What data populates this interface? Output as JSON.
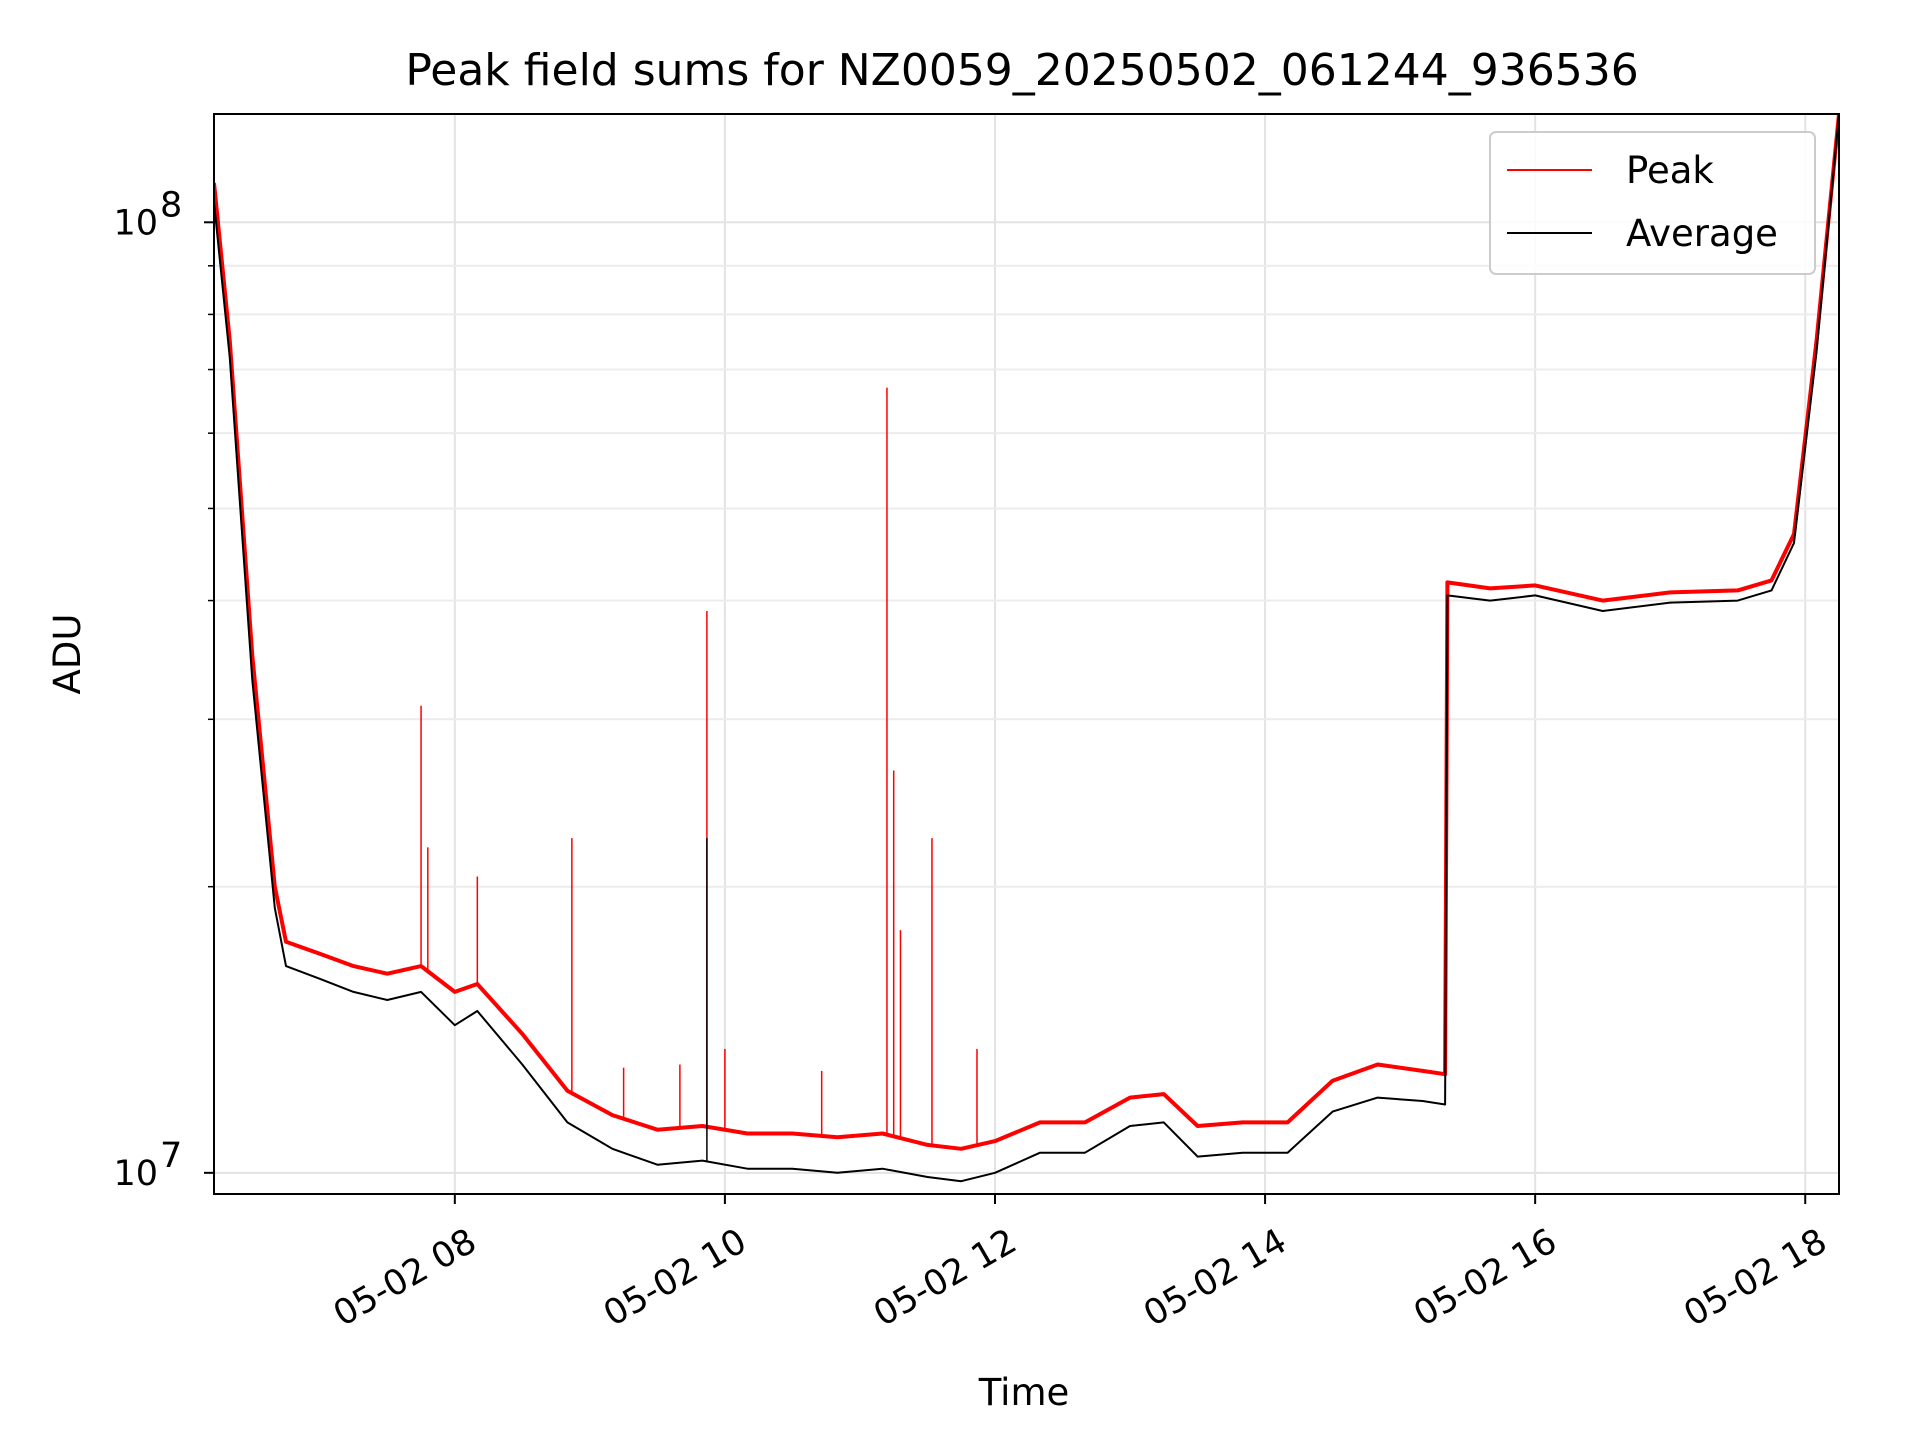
{
  "chart_data": {
    "type": "line",
    "title": "Peak field sums for NZ0059_20250502_061244_936536",
    "xlabel": "Time",
    "ylabel": "ADU",
    "yscale": "log",
    "grid": true,
    "legend_position": "top-right",
    "xlim": [
      "05-02 06:13",
      "05-02 18:15"
    ],
    "ylim": [
      9500000,
      130000000
    ],
    "x_ticks": [
      {
        "value": "05-02 08:00",
        "label": "05-02 08"
      },
      {
        "value": "05-02 10:00",
        "label": "05-02 10"
      },
      {
        "value": "05-02 12:00",
        "label": "05-02 12"
      },
      {
        "value": "05-02 14:00",
        "label": "05-02 14"
      },
      {
        "value": "05-02 16:00",
        "label": "05-02 16"
      },
      {
        "value": "05-02 18:00",
        "label": "05-02 18"
      }
    ],
    "y_ticks": [
      {
        "value": 10000000,
        "base": "10",
        "exp": "7"
      },
      {
        "value": 100000000,
        "base": "10",
        "exp": "8"
      }
    ],
    "series": [
      {
        "name": "Peak",
        "color": "#ff0000",
        "x": [
          "05-02 06:13",
          "05-02 06:20",
          "05-02 06:30",
          "05-02 06:40",
          "05-02 06:45",
          "05-02 07:00",
          "05-02 07:15",
          "05-02 07:30",
          "05-02 07:45",
          "05-02 08:00",
          "05-02 08:10",
          "05-02 08:30",
          "05-02 08:50",
          "05-02 09:10",
          "05-02 09:30",
          "05-02 09:50",
          "05-02 10:10",
          "05-02 10:30",
          "05-02 10:50",
          "05-02 11:10",
          "05-02 11:30",
          "05-02 11:45",
          "05-02 12:00",
          "05-02 12:20",
          "05-02 12:40",
          "05-02 13:00",
          "05-02 13:15",
          "05-02 13:30",
          "05-02 13:50",
          "05-02 14:10",
          "05-02 14:30",
          "05-02 14:50",
          "05-02 15:10",
          "05-02 15:20",
          "05-02 15:21",
          "05-02 15:40",
          "05-02 16:00",
          "05-02 16:30",
          "05-02 17:00",
          "05-02 17:30",
          "05-02 17:45",
          "05-02 17:55",
          "05-02 18:05",
          "05-02 18:15"
        ],
        "values": [
          110000000,
          75000000,
          35000000,
          20000000,
          17500000,
          17000000,
          16500000,
          16200000,
          16500000,
          15500000,
          15800000,
          14000000,
          12200000,
          11500000,
          11100000,
          11200000,
          11000000,
          11000000,
          10900000,
          11000000,
          10700000,
          10600000,
          10800000,
          11300000,
          11300000,
          12000000,
          12100000,
          11200000,
          11300000,
          11300000,
          12500000,
          13000000,
          12800000,
          12700000,
          41800000,
          41200000,
          41500000,
          40000000,
          40800000,
          41000000,
          42000000,
          47000000,
          75000000,
          130000000
        ]
      },
      {
        "name": "Average",
        "color": "#000000",
        "x": [
          "05-02 06:13",
          "05-02 06:20",
          "05-02 06:30",
          "05-02 06:40",
          "05-02 06:45",
          "05-02 07:00",
          "05-02 07:15",
          "05-02 07:30",
          "05-02 07:45",
          "05-02 08:00",
          "05-02 08:10",
          "05-02 08:30",
          "05-02 08:50",
          "05-02 09:10",
          "05-02 09:30",
          "05-02 09:50",
          "05-02 10:10",
          "05-02 10:30",
          "05-02 10:50",
          "05-02 11:10",
          "05-02 11:30",
          "05-02 11:45",
          "05-02 12:00",
          "05-02 12:20",
          "05-02 12:40",
          "05-02 13:00",
          "05-02 13:15",
          "05-02 13:30",
          "05-02 13:50",
          "05-02 14:10",
          "05-02 14:30",
          "05-02 14:50",
          "05-02 15:10",
          "05-02 15:20",
          "05-02 15:21",
          "05-02 15:40",
          "05-02 16:00",
          "05-02 16:30",
          "05-02 17:00",
          "05-02 17:30",
          "05-02 17:45",
          "05-02 17:55",
          "05-02 18:05",
          "05-02 18:15"
        ],
        "values": [
          105000000,
          72000000,
          33000000,
          19000000,
          16500000,
          16000000,
          15500000,
          15200000,
          15500000,
          14300000,
          14800000,
          13000000,
          11300000,
          10600000,
          10200000,
          10300000,
          10100000,
          10100000,
          10000000,
          10100000,
          9900000,
          9800000,
          10000000,
          10500000,
          10500000,
          11200000,
          11300000,
          10400000,
          10500000,
          10500000,
          11600000,
          12000000,
          11900000,
          11800000,
          40500000,
          40000000,
          40500000,
          39000000,
          39800000,
          40000000,
          41000000,
          46000000,
          73000000,
          130000000
        ]
      }
    ],
    "spikes": [
      {
        "x": "05-02 07:45",
        "value": 31000000,
        "series": "Peak"
      },
      {
        "x": "05-02 07:48",
        "value": 22000000,
        "series": "Peak"
      },
      {
        "x": "05-02 08:10",
        "value": 20500000,
        "series": "Peak"
      },
      {
        "x": "05-02 08:52",
        "value": 22500000,
        "series": "Peak"
      },
      {
        "x": "05-02 09:15",
        "value": 12900000,
        "series": "Peak"
      },
      {
        "x": "05-02 09:40",
        "value": 13000000,
        "series": "Peak"
      },
      {
        "x": "05-02 09:52",
        "value": 39000000,
        "series": "Peak"
      },
      {
        "x": "05-02 09:52",
        "value": 22500000,
        "series": "Average"
      },
      {
        "x": "05-02 10:00",
        "value": 13500000,
        "series": "Peak"
      },
      {
        "x": "05-02 10:43",
        "value": 12800000,
        "series": "Peak"
      },
      {
        "x": "05-02 11:12",
        "value": 67000000,
        "series": "Peak"
      },
      {
        "x": "05-02 11:15",
        "value": 26500000,
        "series": "Peak"
      },
      {
        "x": "05-02 11:18",
        "value": 18000000,
        "series": "Peak"
      },
      {
        "x": "05-02 11:32",
        "value": 22500000,
        "series": "Peak"
      },
      {
        "x": "05-02 11:52",
        "value": 13500000,
        "series": "Peak"
      }
    ]
  }
}
